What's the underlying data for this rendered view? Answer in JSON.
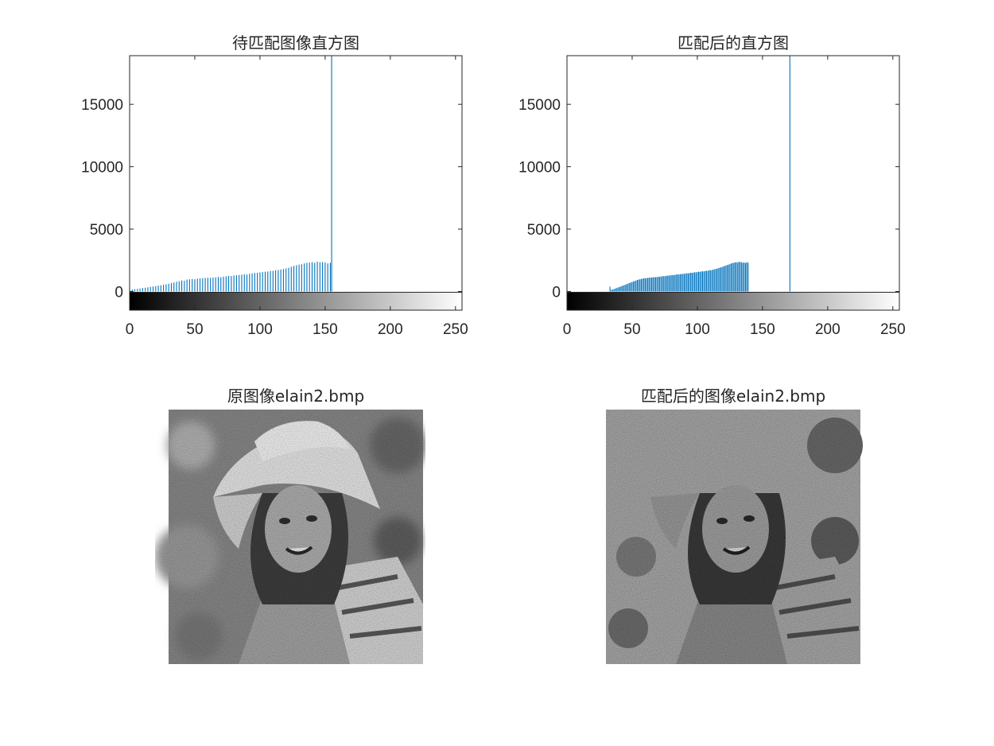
{
  "window": {
    "title": ""
  },
  "colors": {
    "bar": "#0072BD",
    "axis": "#262626",
    "background": "#ffffff"
  },
  "chart_data": [
    {
      "type": "bar",
      "title": "待匹配图像直方图",
      "xlabel": "",
      "ylabel": "",
      "xlim": [
        0,
        255
      ],
      "ylim": [
        -1500,
        18900
      ],
      "xticks": [
        0,
        50,
        100,
        150,
        200,
        250
      ],
      "yticks": [
        0,
        5000,
        10000,
        15000
      ],
      "colorbar": "grayscale",
      "bins": [
        {
          "x": 0,
          "y": 340
        },
        {
          "x": 2,
          "y": 150
        },
        {
          "x": 4,
          "y": 180
        },
        {
          "x": 6,
          "y": 210
        },
        {
          "x": 8,
          "y": 240
        },
        {
          "x": 10,
          "y": 280
        },
        {
          "x": 12,
          "y": 300
        },
        {
          "x": 14,
          "y": 330
        },
        {
          "x": 16,
          "y": 370
        },
        {
          "x": 18,
          "y": 400
        },
        {
          "x": 20,
          "y": 430
        },
        {
          "x": 22,
          "y": 470
        },
        {
          "x": 24,
          "y": 500
        },
        {
          "x": 26,
          "y": 540
        },
        {
          "x": 28,
          "y": 580
        },
        {
          "x": 30,
          "y": 620
        },
        {
          "x": 32,
          "y": 680
        },
        {
          "x": 34,
          "y": 720
        },
        {
          "x": 36,
          "y": 780
        },
        {
          "x": 38,
          "y": 820
        },
        {
          "x": 40,
          "y": 880
        },
        {
          "x": 42,
          "y": 860
        },
        {
          "x": 44,
          "y": 950
        },
        {
          "x": 46,
          "y": 970
        },
        {
          "x": 48,
          "y": 1000
        },
        {
          "x": 50,
          "y": 980
        },
        {
          "x": 52,
          "y": 1030
        },
        {
          "x": 54,
          "y": 1050
        },
        {
          "x": 56,
          "y": 1070
        },
        {
          "x": 58,
          "y": 1080
        },
        {
          "x": 60,
          "y": 1100
        },
        {
          "x": 62,
          "y": 1090
        },
        {
          "x": 64,
          "y": 1120
        },
        {
          "x": 66,
          "y": 1130
        },
        {
          "x": 68,
          "y": 1160
        },
        {
          "x": 70,
          "y": 1140
        },
        {
          "x": 72,
          "y": 1190
        },
        {
          "x": 74,
          "y": 1210
        },
        {
          "x": 76,
          "y": 1250
        },
        {
          "x": 78,
          "y": 1230
        },
        {
          "x": 80,
          "y": 1280
        },
        {
          "x": 82,
          "y": 1300
        },
        {
          "x": 84,
          "y": 1320
        },
        {
          "x": 86,
          "y": 1350
        },
        {
          "x": 88,
          "y": 1380
        },
        {
          "x": 90,
          "y": 1360
        },
        {
          "x": 92,
          "y": 1420
        },
        {
          "x": 94,
          "y": 1450
        },
        {
          "x": 96,
          "y": 1480
        },
        {
          "x": 98,
          "y": 1500
        },
        {
          "x": 100,
          "y": 1530
        },
        {
          "x": 102,
          "y": 1560
        },
        {
          "x": 104,
          "y": 1580
        },
        {
          "x": 106,
          "y": 1600
        },
        {
          "x": 108,
          "y": 1640
        },
        {
          "x": 110,
          "y": 1650
        },
        {
          "x": 112,
          "y": 1700
        },
        {
          "x": 114,
          "y": 1720
        },
        {
          "x": 116,
          "y": 1760
        },
        {
          "x": 118,
          "y": 1800
        },
        {
          "x": 120,
          "y": 1850
        },
        {
          "x": 122,
          "y": 1900
        },
        {
          "x": 124,
          "y": 1980
        },
        {
          "x": 126,
          "y": 2050
        },
        {
          "x": 128,
          "y": 2100
        },
        {
          "x": 130,
          "y": 2150
        },
        {
          "x": 132,
          "y": 2180
        },
        {
          "x": 134,
          "y": 2250
        },
        {
          "x": 136,
          "y": 2300
        },
        {
          "x": 138,
          "y": 2320
        },
        {
          "x": 140,
          "y": 2340
        },
        {
          "x": 142,
          "y": 2300
        },
        {
          "x": 144,
          "y": 2380
        },
        {
          "x": 146,
          "y": 2350
        },
        {
          "x": 148,
          "y": 2360
        },
        {
          "x": 150,
          "y": 2330
        },
        {
          "x": 152,
          "y": 2250
        },
        {
          "x": 154,
          "y": 2300
        },
        {
          "x": 155,
          "y": 18900
        }
      ]
    },
    {
      "type": "bar",
      "title": "匹配后的直方图",
      "xlabel": "",
      "ylabel": "",
      "xlim": [
        0,
        255
      ],
      "ylim": [
        -1500,
        18900
      ],
      "xticks": [
        0,
        50,
        100,
        150,
        200,
        250
      ],
      "yticks": [
        0,
        5000,
        10000,
        15000
      ],
      "colorbar": "grayscale",
      "bins": [
        {
          "x": 33,
          "y": 380
        },
        {
          "x": 34,
          "y": 120
        },
        {
          "x": 35,
          "y": 160
        },
        {
          "x": 36,
          "y": 190
        },
        {
          "x": 37,
          "y": 230
        },
        {
          "x": 38,
          "y": 270
        },
        {
          "x": 39,
          "y": 310
        },
        {
          "x": 40,
          "y": 350
        },
        {
          "x": 41,
          "y": 390
        },
        {
          "x": 42,
          "y": 430
        },
        {
          "x": 43,
          "y": 470
        },
        {
          "x": 44,
          "y": 510
        },
        {
          "x": 45,
          "y": 550
        },
        {
          "x": 46,
          "y": 600
        },
        {
          "x": 47,
          "y": 640
        },
        {
          "x": 48,
          "y": 680
        },
        {
          "x": 49,
          "y": 720
        },
        {
          "x": 50,
          "y": 760
        },
        {
          "x": 51,
          "y": 800
        },
        {
          "x": 52,
          "y": 840
        },
        {
          "x": 53,
          "y": 880
        },
        {
          "x": 54,
          "y": 920
        },
        {
          "x": 55,
          "y": 950
        },
        {
          "x": 56,
          "y": 980
        },
        {
          "x": 57,
          "y": 1000
        },
        {
          "x": 58,
          "y": 1030
        },
        {
          "x": 59,
          "y": 1050
        },
        {
          "x": 60,
          "y": 1070
        },
        {
          "x": 61,
          "y": 1060
        },
        {
          "x": 62,
          "y": 1090
        },
        {
          "x": 63,
          "y": 1100
        },
        {
          "x": 64,
          "y": 1120
        },
        {
          "x": 65,
          "y": 1110
        },
        {
          "x": 66,
          "y": 1130
        },
        {
          "x": 67,
          "y": 1150
        },
        {
          "x": 68,
          "y": 1140
        },
        {
          "x": 69,
          "y": 1160
        },
        {
          "x": 70,
          "y": 1180
        },
        {
          "x": 71,
          "y": 1170
        },
        {
          "x": 72,
          "y": 1200
        },
        {
          "x": 73,
          "y": 1210
        },
        {
          "x": 74,
          "y": 1230
        },
        {
          "x": 75,
          "y": 1220
        },
        {
          "x": 76,
          "y": 1250
        },
        {
          "x": 77,
          "y": 1260
        },
        {
          "x": 78,
          "y": 1280
        },
        {
          "x": 79,
          "y": 1270
        },
        {
          "x": 80,
          "y": 1300
        },
        {
          "x": 81,
          "y": 1320
        },
        {
          "x": 82,
          "y": 1310
        },
        {
          "x": 83,
          "y": 1340
        },
        {
          "x": 84,
          "y": 1350
        },
        {
          "x": 85,
          "y": 1370
        },
        {
          "x": 86,
          "y": 1360
        },
        {
          "x": 87,
          "y": 1390
        },
        {
          "x": 88,
          "y": 1400
        },
        {
          "x": 89,
          "y": 1420
        },
        {
          "x": 90,
          "y": 1410
        },
        {
          "x": 91,
          "y": 1440
        },
        {
          "x": 92,
          "y": 1460
        },
        {
          "x": 93,
          "y": 1450
        },
        {
          "x": 94,
          "y": 1480
        },
        {
          "x": 95,
          "y": 1500
        },
        {
          "x": 96,
          "y": 1490
        },
        {
          "x": 97,
          "y": 1520
        },
        {
          "x": 98,
          "y": 1540
        },
        {
          "x": 99,
          "y": 1530
        },
        {
          "x": 100,
          "y": 1560
        },
        {
          "x": 101,
          "y": 1580
        },
        {
          "x": 102,
          "y": 1570
        },
        {
          "x": 103,
          "y": 1600
        },
        {
          "x": 104,
          "y": 1620
        },
        {
          "x": 105,
          "y": 1610
        },
        {
          "x": 106,
          "y": 1640
        },
        {
          "x": 107,
          "y": 1660
        },
        {
          "x": 108,
          "y": 1650
        },
        {
          "x": 109,
          "y": 1690
        },
        {
          "x": 110,
          "y": 1710
        },
        {
          "x": 111,
          "y": 1700
        },
        {
          "x": 112,
          "y": 1750
        },
        {
          "x": 113,
          "y": 1780
        },
        {
          "x": 114,
          "y": 1800
        },
        {
          "x": 115,
          "y": 1830
        },
        {
          "x": 116,
          "y": 1860
        },
        {
          "x": 117,
          "y": 1900
        },
        {
          "x": 118,
          "y": 1930
        },
        {
          "x": 119,
          "y": 1960
        },
        {
          "x": 120,
          "y": 2000
        },
        {
          "x": 121,
          "y": 2050
        },
        {
          "x": 122,
          "y": 2080
        },
        {
          "x": 123,
          "y": 2120
        },
        {
          "x": 124,
          "y": 2150
        },
        {
          "x": 125,
          "y": 2200
        },
        {
          "x": 126,
          "y": 2250
        },
        {
          "x": 127,
          "y": 2280
        },
        {
          "x": 128,
          "y": 2300
        },
        {
          "x": 129,
          "y": 2330
        },
        {
          "x": 130,
          "y": 2350
        },
        {
          "x": 131,
          "y": 2310
        },
        {
          "x": 132,
          "y": 2380
        },
        {
          "x": 133,
          "y": 2360
        },
        {
          "x": 134,
          "y": 2340
        },
        {
          "x": 135,
          "y": 2300
        },
        {
          "x": 136,
          "y": 2320
        },
        {
          "x": 137,
          "y": 2280
        },
        {
          "x": 138,
          "y": 2350
        },
        {
          "x": 139,
          "y": 2300
        },
        {
          "x": 171,
          "y": 18900
        }
      ]
    }
  ],
  "images": [
    {
      "title": "原图像elain2.bmp",
      "icon": "portrait-photo-icon",
      "style": "original"
    },
    {
      "title": "匹配后的图像elain2.bmp",
      "icon": "portrait-photo-icon",
      "style": "matched"
    }
  ]
}
